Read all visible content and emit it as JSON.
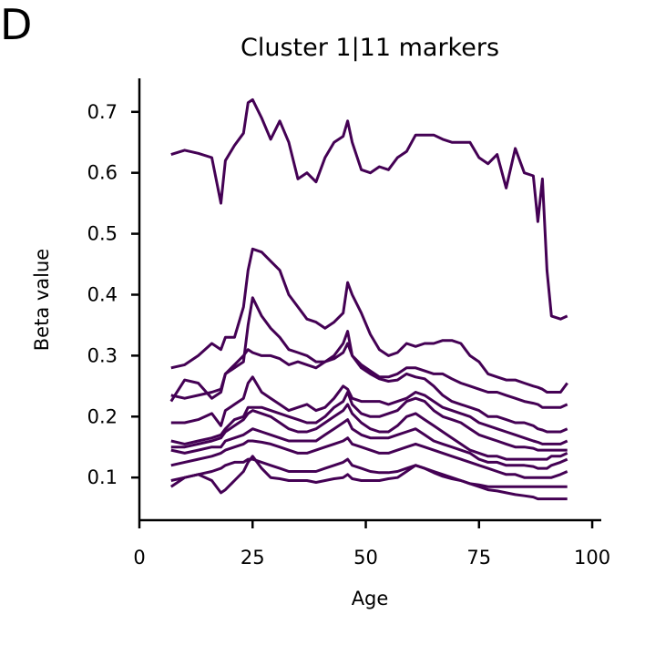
{
  "panel_letter": "D",
  "chart_data": {
    "type": "line",
    "title": "Cluster 1|11 markers",
    "xlabel": "Age",
    "ylabel": "Beta value",
    "xlim": [
      0,
      102
    ],
    "ylim": [
      0.03,
      0.755
    ],
    "xticks": [
      0,
      25,
      50,
      75,
      100
    ],
    "yticks": [
      0.1,
      0.2,
      0.3,
      0.4,
      0.5,
      0.6,
      0.7
    ],
    "xtick_labels": [
      "0",
      "25",
      "50",
      "75",
      "100"
    ],
    "ytick_labels": [
      "0.1",
      "0.2",
      "0.3",
      "0.4",
      "0.5",
      "0.6",
      "0.7"
    ],
    "grid": false,
    "line_color": "#440154",
    "x": [
      7,
      10,
      13,
      16,
      18,
      19,
      21,
      23,
      24,
      25,
      27,
      29,
      31,
      33,
      35,
      37,
      39,
      41,
      43,
      45,
      46,
      47,
      49,
      51,
      53,
      55,
      57,
      59,
      61,
      63,
      65,
      67,
      69,
      71,
      73,
      75,
      77,
      79,
      81,
      83,
      85,
      87,
      88,
      89,
      90,
      91,
      93,
      94.5
    ],
    "series": [
      {
        "values": [
          0.63,
          0.637,
          0.632,
          0.625,
          0.55,
          0.62,
          0.645,
          0.665,
          0.715,
          0.72,
          0.69,
          0.655,
          0.685,
          0.65,
          0.59,
          0.6,
          0.585,
          0.625,
          0.65,
          0.66,
          0.685,
          0.65,
          0.605,
          0.6,
          0.61,
          0.605,
          0.625,
          0.635,
          0.662,
          0.662,
          0.662,
          0.655,
          0.65,
          0.65,
          0.65,
          0.625,
          0.615,
          0.63,
          0.575,
          0.64,
          0.6,
          0.595,
          0.52,
          0.59,
          0.44,
          0.365,
          0.36,
          0.365
        ]
      },
      {
        "values": [
          0.28,
          0.285,
          0.3,
          0.32,
          0.31,
          0.33,
          0.33,
          0.38,
          0.44,
          0.475,
          0.47,
          0.455,
          0.44,
          0.4,
          0.38,
          0.36,
          0.355,
          0.345,
          0.355,
          0.37,
          0.42,
          0.4,
          0.37,
          0.335,
          0.31,
          0.3,
          0.305,
          0.32,
          0.315,
          0.32,
          0.32,
          0.325,
          0.325,
          0.32,
          0.3,
          0.29,
          0.27,
          0.265,
          0.26,
          0.26,
          0.255,
          0.25,
          0.248,
          0.245,
          0.24,
          0.24,
          0.24,
          0.255
        ]
      },
      {
        "values": [
          0.235,
          0.23,
          0.235,
          0.24,
          0.245,
          0.27,
          0.28,
          0.29,
          0.35,
          0.395,
          0.365,
          0.345,
          0.33,
          0.31,
          0.305,
          0.3,
          0.29,
          0.29,
          0.3,
          0.32,
          0.34,
          0.3,
          0.285,
          0.275,
          0.265,
          0.265,
          0.27,
          0.28,
          0.28,
          0.275,
          0.27,
          0.27,
          0.262,
          0.255,
          0.25,
          0.245,
          0.24,
          0.24,
          0.235,
          0.23,
          0.225,
          0.222,
          0.22,
          0.215,
          0.215,
          0.215,
          0.215,
          0.22
        ]
      },
      {
        "values": [
          0.225,
          0.26,
          0.255,
          0.23,
          0.24,
          0.27,
          0.285,
          0.3,
          0.31,
          0.305,
          0.3,
          0.3,
          0.295,
          0.285,
          0.29,
          0.285,
          0.28,
          0.29,
          0.295,
          0.305,
          0.32,
          0.3,
          0.28,
          0.27,
          0.262,
          0.258,
          0.26,
          0.27,
          0.265,
          0.262,
          0.25,
          0.235,
          0.225,
          0.22,
          0.215,
          0.21,
          0.2,
          0.2,
          0.195,
          0.19,
          0.19,
          0.185,
          0.18,
          0.178,
          0.175,
          0.175,
          0.175,
          0.18
        ]
      },
      {
        "values": [
          0.19,
          0.19,
          0.195,
          0.205,
          0.185,
          0.21,
          0.22,
          0.23,
          0.255,
          0.265,
          0.24,
          0.23,
          0.22,
          0.21,
          0.215,
          0.22,
          0.21,
          0.215,
          0.23,
          0.25,
          0.245,
          0.23,
          0.225,
          0.225,
          0.225,
          0.22,
          0.225,
          0.23,
          0.24,
          0.235,
          0.225,
          0.215,
          0.21,
          0.205,
          0.2,
          0.19,
          0.185,
          0.18,
          0.175,
          0.17,
          0.165,
          0.16,
          0.158,
          0.155,
          0.155,
          0.155,
          0.155,
          0.16
        ]
      },
      {
        "values": [
          0.16,
          0.155,
          0.16,
          0.165,
          0.17,
          0.18,
          0.195,
          0.2,
          0.215,
          0.215,
          0.215,
          0.21,
          0.205,
          0.2,
          0.195,
          0.19,
          0.19,
          0.2,
          0.215,
          0.225,
          0.24,
          0.22,
          0.205,
          0.2,
          0.2,
          0.205,
          0.21,
          0.225,
          0.23,
          0.225,
          0.21,
          0.2,
          0.195,
          0.19,
          0.18,
          0.17,
          0.165,
          0.16,
          0.155,
          0.15,
          0.15,
          0.148,
          0.145,
          0.145,
          0.145,
          0.145,
          0.145,
          0.145
        ]
      },
      {
        "values": [
          0.15,
          0.15,
          0.155,
          0.16,
          0.165,
          0.175,
          0.185,
          0.195,
          0.205,
          0.21,
          0.205,
          0.2,
          0.19,
          0.18,
          0.175,
          0.175,
          0.18,
          0.19,
          0.2,
          0.21,
          0.22,
          0.205,
          0.19,
          0.18,
          0.175,
          0.175,
          0.185,
          0.2,
          0.205,
          0.195,
          0.185,
          0.175,
          0.165,
          0.155,
          0.145,
          0.14,
          0.135,
          0.135,
          0.13,
          0.13,
          0.13,
          0.13,
          0.13,
          0.13,
          0.13,
          0.135,
          0.135,
          0.14
        ]
      },
      {
        "values": [
          0.145,
          0.14,
          0.145,
          0.15,
          0.15,
          0.16,
          0.165,
          0.17,
          0.175,
          0.18,
          0.175,
          0.17,
          0.165,
          0.16,
          0.16,
          0.16,
          0.16,
          0.17,
          0.18,
          0.19,
          0.195,
          0.18,
          0.17,
          0.165,
          0.165,
          0.165,
          0.17,
          0.175,
          0.18,
          0.17,
          0.16,
          0.155,
          0.15,
          0.145,
          0.14,
          0.13,
          0.125,
          0.125,
          0.12,
          0.12,
          0.12,
          0.118,
          0.115,
          0.115,
          0.115,
          0.12,
          0.125,
          0.13
        ]
      },
      {
        "values": [
          0.12,
          0.125,
          0.13,
          0.135,
          0.14,
          0.145,
          0.15,
          0.155,
          0.16,
          0.16,
          0.158,
          0.155,
          0.15,
          0.145,
          0.14,
          0.14,
          0.145,
          0.15,
          0.155,
          0.16,
          0.165,
          0.155,
          0.15,
          0.145,
          0.14,
          0.14,
          0.145,
          0.15,
          0.155,
          0.15,
          0.145,
          0.14,
          0.135,
          0.13,
          0.125,
          0.12,
          0.115,
          0.11,
          0.105,
          0.105,
          0.1,
          0.1,
          0.1,
          0.1,
          0.1,
          0.1,
          0.105,
          0.11
        ]
      },
      {
        "values": [
          0.095,
          0.1,
          0.105,
          0.11,
          0.115,
          0.12,
          0.125,
          0.125,
          0.13,
          0.13,
          0.125,
          0.12,
          0.115,
          0.11,
          0.11,
          0.11,
          0.11,
          0.115,
          0.12,
          0.125,
          0.13,
          0.12,
          0.115,
          0.11,
          0.108,
          0.108,
          0.11,
          0.115,
          0.12,
          0.115,
          0.11,
          0.105,
          0.1,
          0.095,
          0.09,
          0.088,
          0.085,
          0.085,
          0.085,
          0.085,
          0.085,
          0.085,
          0.085,
          0.085,
          0.085,
          0.085,
          0.085,
          0.085
        ]
      },
      {
        "values": [
          0.085,
          0.1,
          0.105,
          0.095,
          0.075,
          0.08,
          0.095,
          0.11,
          0.125,
          0.135,
          0.115,
          0.1,
          0.098,
          0.095,
          0.095,
          0.095,
          0.092,
          0.095,
          0.098,
          0.1,
          0.105,
          0.098,
          0.095,
          0.095,
          0.095,
          0.098,
          0.1,
          0.11,
          0.12,
          0.115,
          0.108,
          0.102,
          0.098,
          0.095,
          0.09,
          0.085,
          0.08,
          0.078,
          0.075,
          0.072,
          0.07,
          0.068,
          0.065,
          0.065,
          0.065,
          0.065,
          0.065,
          0.065
        ]
      }
    ]
  }
}
